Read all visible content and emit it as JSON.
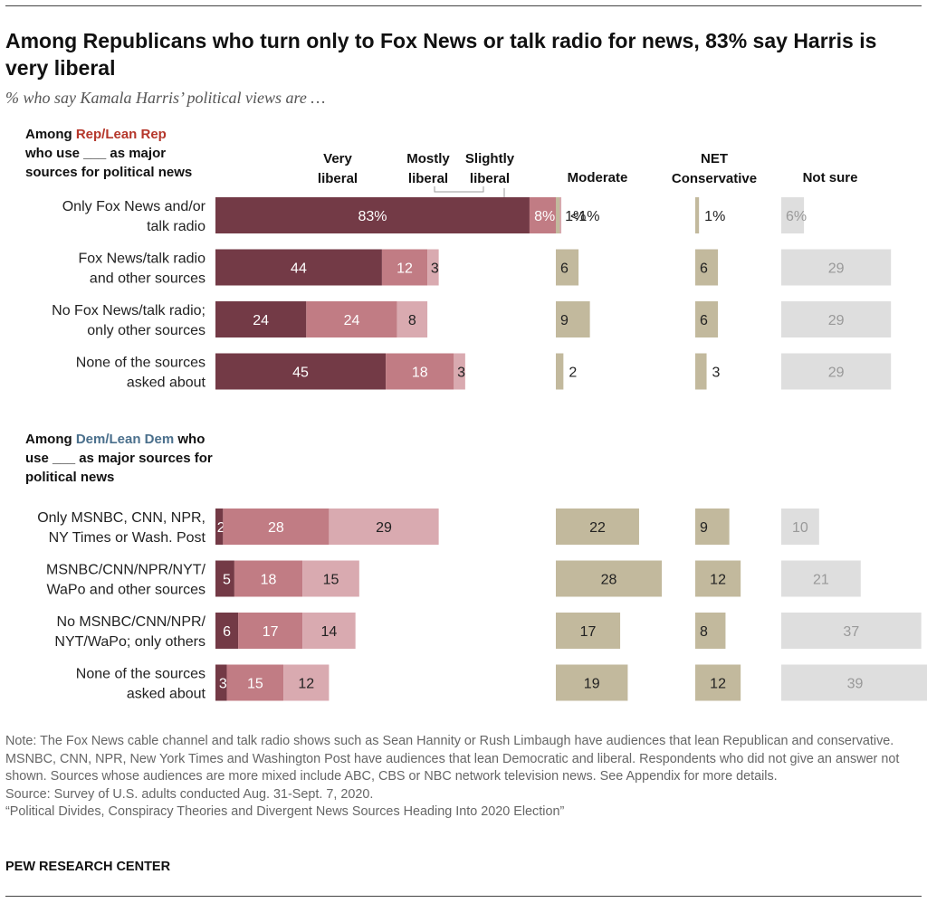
{
  "title": "Among Republicans who turn only to Fox News or talk radio for news, 83% say Harris is very liberal",
  "subtitle": "% who say Kamala Harris’ political views are …",
  "colors": {
    "very_liberal": "#733a46",
    "mostly_liberal": "#c17c84",
    "slightly_liberal": "#d9aab0",
    "moderate": "#c2b99d",
    "net_conservative": "#c2b99d",
    "not_sure": "#dedede",
    "rep_accent": "#b5372b",
    "dem_accent": "#4a6f8c"
  },
  "chart_data": {
    "type": "bar",
    "stacked": true,
    "units": "percent",
    "columns": [
      "Very liberal",
      "Mostly liberal",
      "Slightly liberal",
      "Moderate",
      "NET Conservative",
      "Not sure"
    ],
    "column_headers": {
      "very_liberal": [
        "Very",
        "liberal"
      ],
      "mostly_liberal": [
        "Mostly",
        "liberal"
      ],
      "slightly_liberal": [
        "Slightly",
        "liberal"
      ],
      "moderate": [
        "Moderate"
      ],
      "net_conservative": [
        "NET",
        "Conservative"
      ],
      "not_sure": [
        "Not sure"
      ]
    },
    "groups": [
      {
        "header": {
          "pre": "Among ",
          "accent": "Rep/Lean Rep",
          "lines": [
            "who use ___ as major",
            "sources for political news"
          ]
        },
        "rows": [
          {
            "label": [
              "Only Fox News and/or",
              "talk radio"
            ],
            "very_liberal": 83,
            "mostly_liberal": 8,
            "slightly_liberal": 0.4,
            "moderate": 1,
            "net_conservative": 1,
            "not_sure": 6,
            "labels": {
              "very_liberal": "83%",
              "mostly_liberal": "8%",
              "slightly_liberal": "<1%",
              "moderate": "1%",
              "net_conservative": "1%",
              "not_sure": "6%"
            }
          },
          {
            "label": [
              "Fox News/talk radio",
              "and other sources"
            ],
            "very_liberal": 44,
            "mostly_liberal": 12,
            "slightly_liberal": 3,
            "moderate": 6,
            "net_conservative": 6,
            "not_sure": 29,
            "labels": {
              "very_liberal": "44",
              "mostly_liberal": "12",
              "slightly_liberal": "3",
              "moderate": "6",
              "net_conservative": "6",
              "not_sure": "29"
            }
          },
          {
            "label": [
              "No Fox News/talk radio;",
              "only other sources"
            ],
            "very_liberal": 24,
            "mostly_liberal": 24,
            "slightly_liberal": 8,
            "moderate": 9,
            "net_conservative": 6,
            "not_sure": 29,
            "labels": {
              "very_liberal": "24",
              "mostly_liberal": "24",
              "slightly_liberal": "8",
              "moderate": "9",
              "net_conservative": "6",
              "not_sure": "29"
            }
          },
          {
            "label": [
              "None of the sources",
              "asked about"
            ],
            "very_liberal": 45,
            "mostly_liberal": 18,
            "slightly_liberal": 3,
            "moderate": 2,
            "net_conservative": 3,
            "not_sure": 29,
            "labels": {
              "very_liberal": "45",
              "mostly_liberal": "18",
              "slightly_liberal": "3",
              "moderate": "2",
              "net_conservative": "3",
              "not_sure": "29"
            }
          }
        ]
      },
      {
        "header": {
          "pre": "Among ",
          "accent": "Dem/Lean Dem",
          "post": " who",
          "lines": [
            "use ___ as major sources for",
            "political news"
          ]
        },
        "rows": [
          {
            "label": [
              "Only MSNBC, CNN, NPR,",
              "NY Times or Wash. Post"
            ],
            "very_liberal": 2,
            "mostly_liberal": 28,
            "slightly_liberal": 29,
            "moderate": 22,
            "net_conservative": 9,
            "not_sure": 10,
            "labels": {
              "very_liberal": "2",
              "mostly_liberal": "28",
              "slightly_liberal": "29",
              "moderate": "22",
              "net_conservative": "9",
              "not_sure": "10"
            }
          },
          {
            "label": [
              "MSNBC/CNN/NPR/NYT/",
              "WaPo and other sources"
            ],
            "very_liberal": 5,
            "mostly_liberal": 18,
            "slightly_liberal": 15,
            "moderate": 28,
            "net_conservative": 12,
            "not_sure": 21,
            "labels": {
              "very_liberal": "5",
              "mostly_liberal": "18",
              "slightly_liberal": "15",
              "moderate": "28",
              "net_conservative": "12",
              "not_sure": "21"
            }
          },
          {
            "label": [
              "No MSNBC/CNN/NPR/",
              "NYT/WaPo; only others"
            ],
            "very_liberal": 6,
            "mostly_liberal": 17,
            "slightly_liberal": 14,
            "moderate": 17,
            "net_conservative": 8,
            "not_sure": 37,
            "labels": {
              "very_liberal": "6",
              "mostly_liberal": "17",
              "slightly_liberal": "14",
              "moderate": "17",
              "net_conservative": "8",
              "not_sure": "37"
            }
          },
          {
            "label": [
              "None of the sources",
              "asked about"
            ],
            "very_liberal": 3,
            "mostly_liberal": 15,
            "slightly_liberal": 12,
            "moderate": 19,
            "net_conservative": 12,
            "not_sure": 39,
            "labels": {
              "very_liberal": "3",
              "mostly_liberal": "15",
              "slightly_liberal": "12",
              "moderate": "19",
              "net_conservative": "12",
              "not_sure": "39"
            }
          }
        ]
      }
    ]
  },
  "notes": {
    "note": "Note: The Fox News cable channel and talk radio shows such as Sean Hannity or Rush Limbaugh have audiences that lean Republican and conservative. MSNBC, CNN, NPR, New York Times and Washington Post have audiences that lean Democratic and liberal. Respondents who did not give an answer not shown. Sources whose audiences are more mixed include ABC, CBS or NBC network television news. See Appendix for more details.",
    "source": "Source: Survey of U.S. adults conducted Aug. 31-Sept. 7, 2020.",
    "report": "“Political Divides, Conspiracy Theories and Divergent News Sources Heading Into 2020 Election”"
  },
  "brand": "PEW RESEARCH CENTER"
}
